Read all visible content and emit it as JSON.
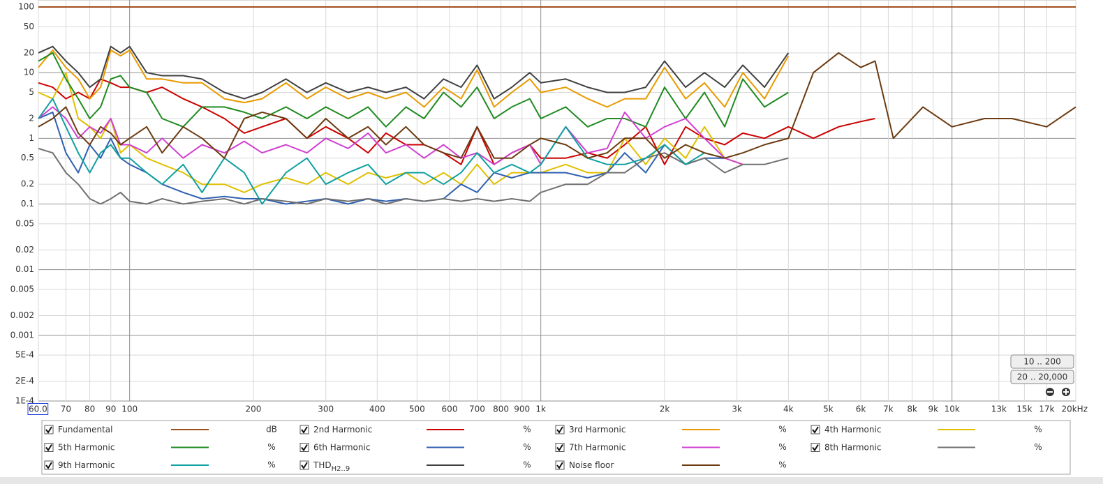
{
  "chart_data": {
    "type": "line",
    "log_x": true,
    "log_y": true,
    "grid": true,
    "xlim": [
      60,
      20000
    ],
    "ylim": [
      0.0001,
      100
    ],
    "xticks": [
      {
        "value": 60,
        "label": "60.0"
      },
      70,
      80,
      90,
      100,
      200,
      300,
      400,
      500,
      600,
      700,
      800,
      900,
      {
        "value": 1000,
        "label": "1k"
      },
      {
        "value": 2000,
        "label": "2k"
      },
      {
        "value": 3000,
        "label": "3k"
      },
      {
        "value": 4000,
        "label": "4k"
      },
      {
        "value": 5000,
        "label": "5k"
      },
      {
        "value": 6000,
        "label": "6k"
      },
      {
        "value": 7000,
        "label": "7k"
      },
      {
        "value": 8000,
        "label": "8k"
      },
      {
        "value": 9000,
        "label": "9k"
      },
      {
        "value": 10000,
        "label": "10k"
      },
      {
        "value": 13000,
        "label": "13k",
        "color": "#aaaaaa"
      },
      {
        "value": 15000,
        "label": "15k",
        "color": "#aaaaaa"
      },
      {
        "value": 17000,
        "label": "17k",
        "color": "#aaaaaa"
      },
      {
        "value": 20000,
        "label": "20kHz"
      }
    ],
    "yticks": [
      100,
      50,
      20,
      10,
      5,
      2,
      1,
      0.5,
      0.2,
      0.1,
      0.05,
      0.02,
      0.01,
      0.005,
      0.002,
      0.001,
      {
        "value": 0.0005,
        "label": "5E-4"
      },
      {
        "value": 0.0002,
        "label": "2E-4"
      },
      {
        "value": 0.0001,
        "label": "1E-4"
      }
    ],
    "x": [
      60,
      65,
      70,
      75,
      80,
      85,
      90,
      95,
      100,
      110,
      120,
      135,
      150,
      170,
      190,
      210,
      240,
      270,
      300,
      340,
      380,
      420,
      470,
      520,
      580,
      640,
      700,
      770,
      850,
      940,
      1000,
      1150,
      1300,
      1450,
      1600,
      1800,
      2000,
      2250,
      2500,
      2800,
      3100,
      3500,
      4000,
      4600,
      5300,
      6000,
      6500,
      7200,
      8500,
      10000,
      12000,
      14000,
      17000,
      20000
    ],
    "series": [
      {
        "name": "Fundamental",
        "unit": "dB",
        "color": "#a0501e",
        "values": [
          100,
          100,
          100,
          100,
          100,
          100,
          100,
          100,
          100,
          100,
          100,
          100,
          100,
          100,
          100,
          100,
          100,
          100,
          100,
          100,
          100,
          100,
          100,
          100,
          100,
          100,
          100,
          100,
          100,
          100,
          100,
          100,
          100,
          100,
          100,
          100,
          100,
          100,
          100,
          100,
          100,
          100,
          100,
          100,
          100,
          100,
          100,
          100,
          100,
          100,
          100,
          100,
          100,
          100
        ]
      },
      {
        "name": "2nd Harmonic",
        "unit": "%",
        "color": "#cc0000",
        "values": [
          7,
          6,
          4,
          5,
          4,
          8,
          7,
          6,
          6,
          5,
          6,
          4,
          3,
          2,
          1.2,
          1.5,
          2,
          1,
          1.5,
          1,
          0.6,
          1.2,
          0.8,
          0.8,
          0.6,
          0.4,
          1.5,
          0.4,
          0.6,
          0.8,
          0.5,
          0.5,
          0.6,
          0.5,
          0.8,
          1.5,
          0.4,
          1.5,
          1,
          0.8,
          1.2,
          1,
          1.5,
          1,
          1.5,
          1.8,
          2,
          null,
          null,
          null,
          null,
          null,
          null,
          null
        ]
      },
      {
        "name": "3rd Harmonic",
        "unit": "%",
        "color": "#e89a00",
        "values": [
          12,
          22,
          12,
          8,
          4,
          6,
          22,
          18,
          22,
          8,
          8,
          7,
          7,
          4,
          3.5,
          4,
          7,
          4,
          6,
          4,
          5,
          4,
          5,
          3,
          6,
          4,
          11,
          3,
          5,
          8,
          5,
          6,
          4,
          3,
          4,
          4,
          12,
          4,
          7,
          3,
          10,
          4,
          18,
          null,
          null,
          null,
          null,
          null,
          null,
          null,
          null,
          null,
          null,
          null
        ]
      },
      {
        "name": "4th Harmonic",
        "unit": "%",
        "color": "#e0c000",
        "values": [
          5,
          4,
          10,
          2,
          1.5,
          1,
          2,
          0.6,
          0.8,
          0.5,
          0.4,
          0.3,
          0.2,
          0.2,
          0.15,
          0.2,
          0.25,
          0.2,
          0.3,
          0.2,
          0.3,
          0.25,
          0.3,
          0.2,
          0.3,
          0.2,
          0.4,
          0.2,
          0.3,
          0.3,
          0.3,
          0.4,
          0.3,
          0.3,
          1,
          0.4,
          1,
          0.5,
          1.5,
          0.5,
          0.4,
          null,
          null,
          null,
          null,
          null,
          null,
          null,
          null,
          null,
          null,
          null,
          null,
          null
        ]
      },
      {
        "name": "5th Harmonic",
        "unit": "%",
        "color": "#208a20",
        "values": [
          15,
          20,
          8,
          4,
          2,
          3,
          8,
          9,
          6,
          5,
          2,
          1.5,
          3,
          3,
          2.5,
          2,
          3,
          2,
          3,
          2,
          3,
          1.5,
          3,
          2,
          5,
          3,
          6,
          2,
          3,
          4,
          2,
          3,
          1.5,
          2,
          2,
          1.5,
          6,
          2,
          5,
          1.5,
          8,
          3,
          5,
          null,
          null,
          null,
          null,
          null,
          null,
          null,
          null,
          null,
          null,
          null
        ]
      },
      {
        "name": "6th Harmonic",
        "unit": "%",
        "color": "#3060b0",
        "values": [
          2,
          2.5,
          0.6,
          0.3,
          0.8,
          0.5,
          1,
          0.5,
          0.4,
          0.3,
          0.2,
          0.15,
          0.12,
          0.13,
          0.12,
          0.12,
          0.1,
          0.11,
          0.12,
          0.1,
          0.12,
          0.11,
          0.12,
          0.11,
          0.12,
          0.2,
          0.15,
          0.3,
          0.25,
          0.3,
          0.3,
          0.3,
          0.25,
          0.3,
          0.6,
          0.3,
          0.8,
          0.4,
          0.5,
          0.5,
          null,
          null,
          null,
          null,
          null,
          null,
          null,
          null,
          null,
          null,
          null,
          null,
          null,
          null
        ]
      },
      {
        "name": "7th Harmonic",
        "unit": "%",
        "color": "#d040d0",
        "values": [
          2,
          3,
          2,
          1,
          1.5,
          1.2,
          2,
          0.8,
          0.8,
          0.6,
          1,
          0.5,
          0.8,
          0.6,
          0.9,
          0.6,
          0.8,
          0.6,
          1,
          0.7,
          1.2,
          0.6,
          0.8,
          0.5,
          0.8,
          0.5,
          0.6,
          0.4,
          0.6,
          0.8,
          0.4,
          1.5,
          0.6,
          0.7,
          2.5,
          1,
          1.5,
          2,
          1,
          0.5,
          0.4,
          null,
          null,
          null,
          null,
          null,
          null,
          null,
          null,
          null,
          null,
          null,
          null,
          null
        ]
      },
      {
        "name": "8th Harmonic",
        "unit": "%",
        "color": "#707070",
        "values": [
          0.7,
          0.6,
          0.3,
          0.2,
          0.12,
          0.1,
          0.12,
          0.15,
          0.11,
          0.1,
          0.12,
          0.1,
          0.11,
          0.12,
          0.1,
          0.12,
          0.11,
          0.1,
          0.12,
          0.11,
          0.12,
          0.1,
          0.12,
          0.11,
          0.12,
          0.11,
          0.12,
          0.11,
          0.12,
          0.11,
          0.15,
          0.2,
          0.2,
          0.3,
          0.3,
          0.5,
          0.6,
          0.4,
          0.5,
          0.3,
          0.4,
          0.4,
          0.5,
          null,
          null,
          null,
          null,
          null,
          null,
          null,
          null,
          null,
          null,
          null
        ]
      },
      {
        "name": "9th Harmonic",
        "unit": "%",
        "color": "#10a0a0",
        "values": [
          2,
          4,
          1.5,
          0.6,
          0.3,
          0.6,
          0.8,
          0.5,
          0.5,
          0.3,
          0.2,
          0.4,
          0.15,
          0.5,
          0.3,
          0.1,
          0.3,
          0.5,
          0.2,
          0.3,
          0.4,
          0.2,
          0.3,
          0.3,
          0.2,
          0.3,
          0.6,
          0.3,
          0.4,
          0.3,
          0.4,
          1.5,
          0.5,
          0.4,
          0.4,
          0.5,
          0.8,
          0.4,
          0.6,
          0.5,
          null,
          null,
          null,
          null,
          null,
          null,
          null,
          null,
          null,
          null,
          null,
          null,
          null,
          null
        ]
      },
      {
        "name": "THD",
        "subscript": "H2..9",
        "unit": "%",
        "color": "#404040",
        "values": [
          20,
          25,
          15,
          10,
          6,
          8,
          25,
          20,
          25,
          10,
          9,
          9,
          8,
          5,
          4,
          5,
          8,
          5,
          7,
          5,
          6,
          5,
          6,
          4,
          8,
          6,
          13,
          4,
          6,
          10,
          7,
          8,
          6,
          5,
          5,
          6,
          15,
          6,
          10,
          6,
          13,
          6,
          20,
          null,
          null,
          null,
          null,
          null,
          null,
          null,
          null,
          null,
          null,
          null
        ]
      },
      {
        "name": "Noise floor",
        "unit": "%",
        "color": "#6b3a10",
        "values": [
          1.5,
          2,
          3,
          1.2,
          0.8,
          1.5,
          1.2,
          0.8,
          1,
          1.5,
          0.6,
          1.5,
          1,
          0.5,
          2,
          2.5,
          2,
          1,
          2,
          1,
          1.5,
          0.8,
          1.5,
          0.8,
          0.6,
          0.5,
          1.5,
          0.5,
          0.5,
          0.8,
          1,
          0.8,
          0.5,
          0.6,
          1,
          1,
          0.5,
          0.8,
          0.6,
          0.5,
          0.6,
          0.8,
          1,
          10,
          20,
          12,
          15,
          1,
          3,
          1.5,
          2,
          2,
          1.5,
          3
        ]
      }
    ],
    "controls": [
      "10 .. 200",
      "20 .. 20,000"
    ]
  }
}
